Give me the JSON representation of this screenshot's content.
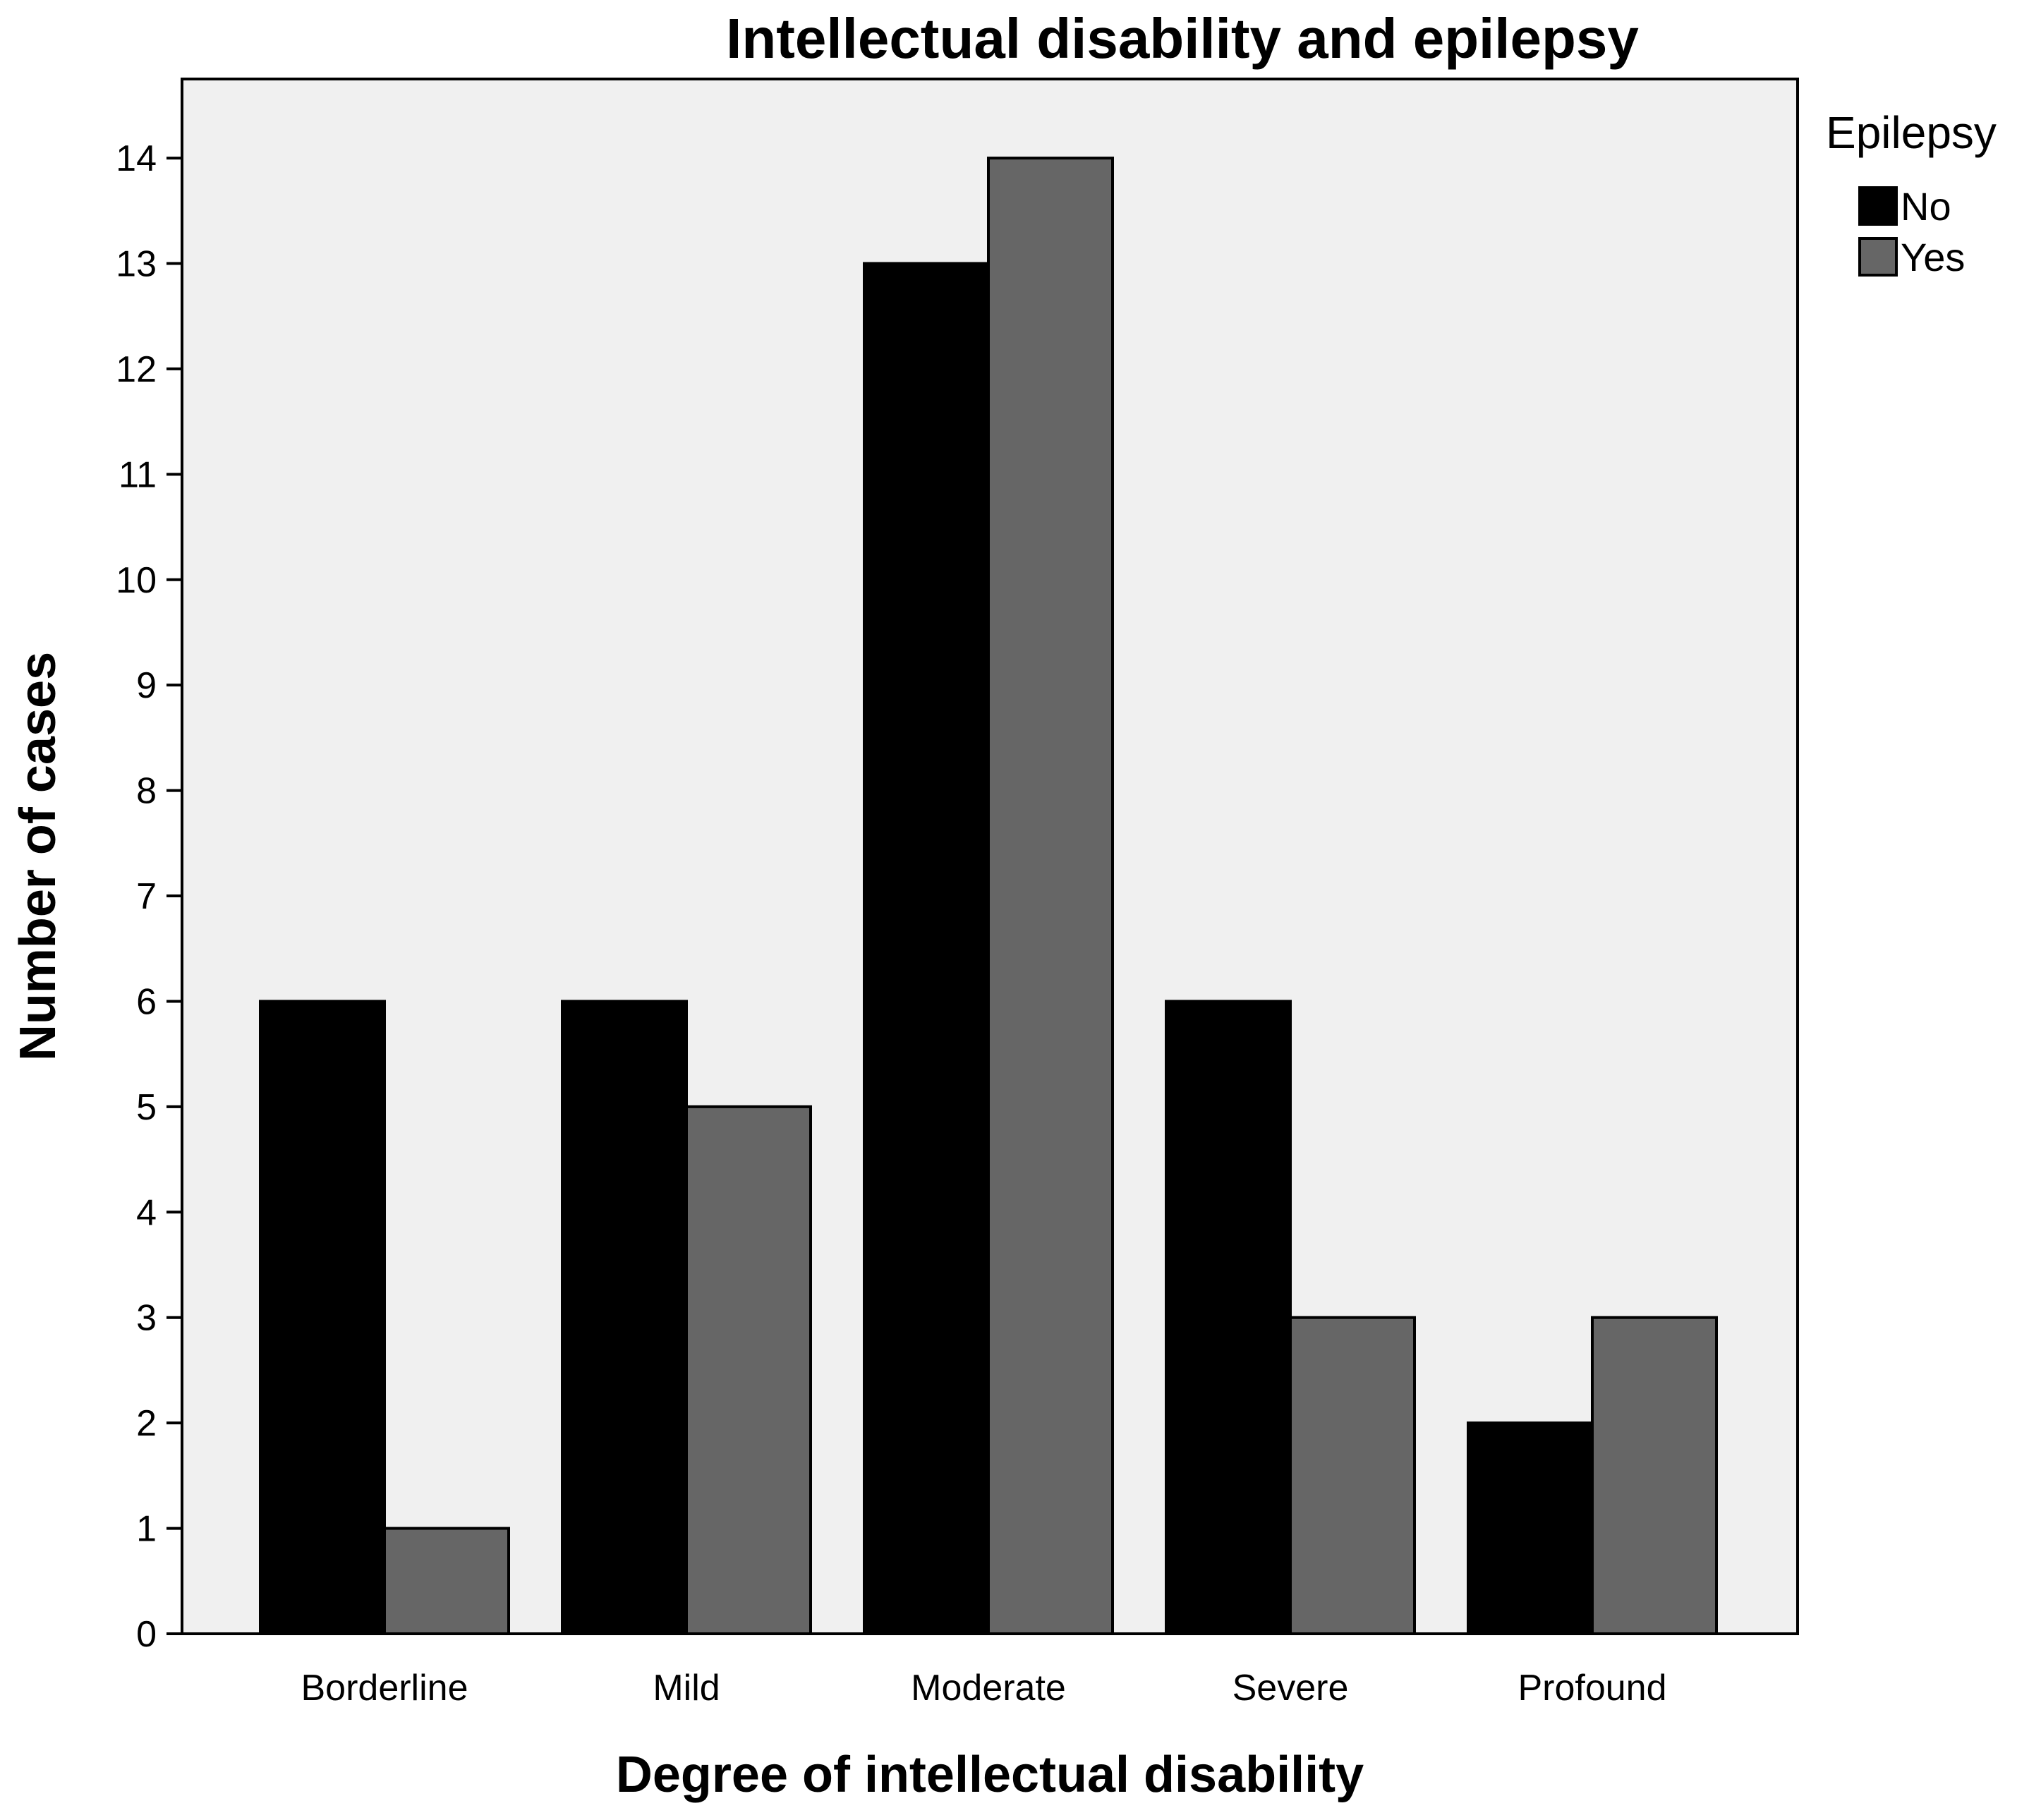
{
  "chart_data": {
    "type": "bar",
    "title": "Intellectual disability and epilepsy",
    "xlabel": "Degree of intellectual disability",
    "ylabel": "Number of cases",
    "categories": [
      "Borderline",
      "Mild",
      "Moderate",
      "Severe",
      "Profound"
    ],
    "series": [
      {
        "name": "No",
        "color": "#000000",
        "values": [
          6,
          6,
          13,
          6,
          2
        ]
      },
      {
        "name": "Yes",
        "color": "#666666",
        "values": [
          1,
          5,
          14,
          3,
          3
        ]
      }
    ],
    "ylim": [
      0,
      14.75
    ],
    "yticks": [
      "0",
      "1",
      "2",
      "3",
      "4",
      "5",
      "6",
      "7",
      "8",
      "9",
      "10",
      "11",
      "12",
      "13",
      "14"
    ],
    "legend": {
      "title": "Epilepsy",
      "position": "right"
    },
    "colors": {
      "plot_background": "#f0f0f0",
      "axis": "#000000"
    },
    "grid": false
  }
}
